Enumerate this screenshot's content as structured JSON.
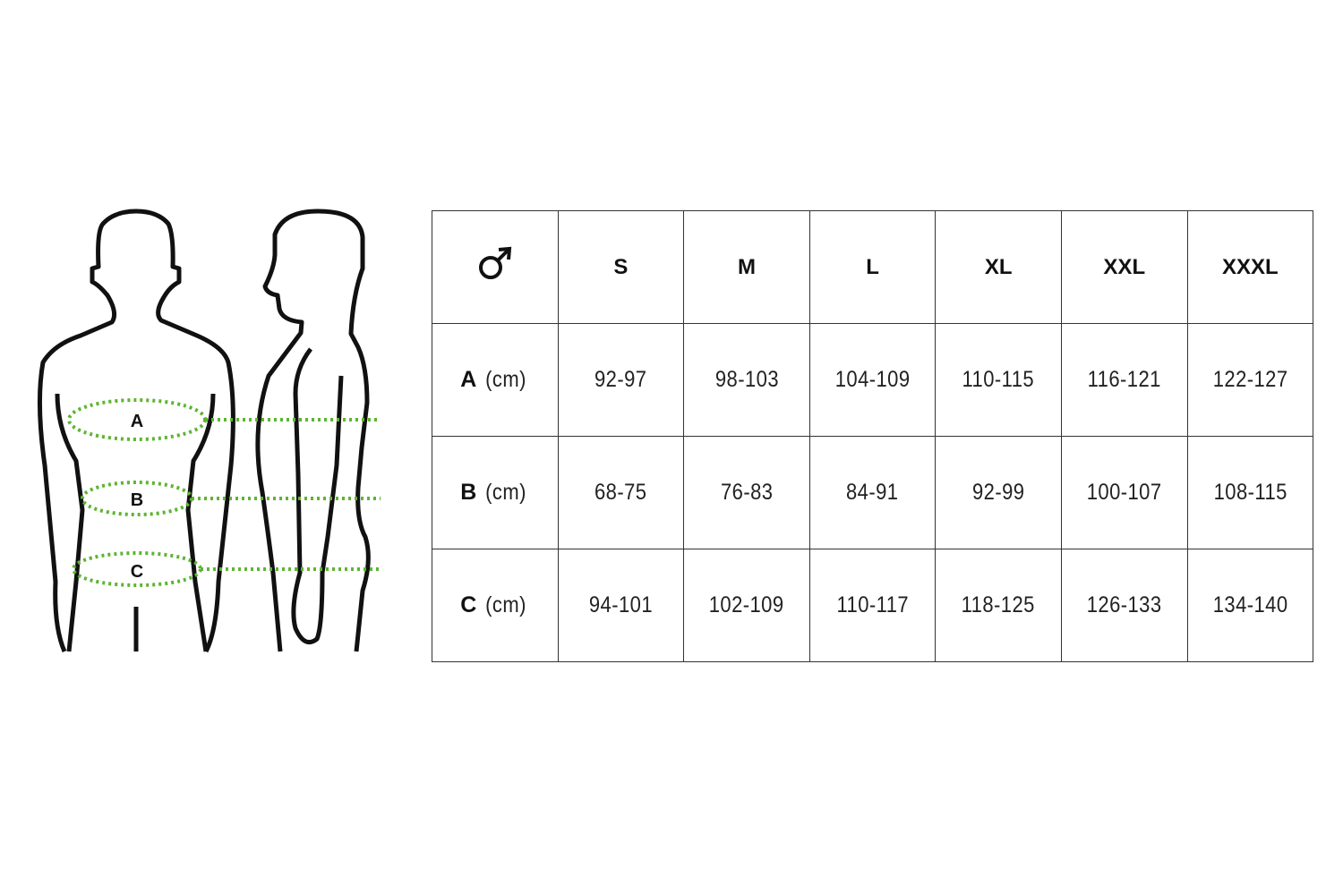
{
  "figure": {
    "labels": [
      "A",
      "B",
      "C"
    ],
    "measure_color": "#5db530",
    "outline_color": "#111111"
  },
  "table": {
    "corner_icon": "male-symbol-icon",
    "sizes": [
      "S",
      "M",
      "L",
      "XL",
      "XXL",
      "XXXL"
    ],
    "rows": [
      {
        "label": "A",
        "unit": "(cm)",
        "values": [
          "92-97",
          "98-103",
          "104-109",
          "110-115",
          "116-121",
          "122-127"
        ]
      },
      {
        "label": "B",
        "unit": "(cm)",
        "values": [
          "68-75",
          "76-83",
          "84-91",
          "92-99",
          "100-107",
          "108-115"
        ]
      },
      {
        "label": "C",
        "unit": "(cm)",
        "values": [
          "94-101",
          "102-109",
          "110-117",
          "118-125",
          "126-133",
          "134-140"
        ]
      }
    ]
  }
}
